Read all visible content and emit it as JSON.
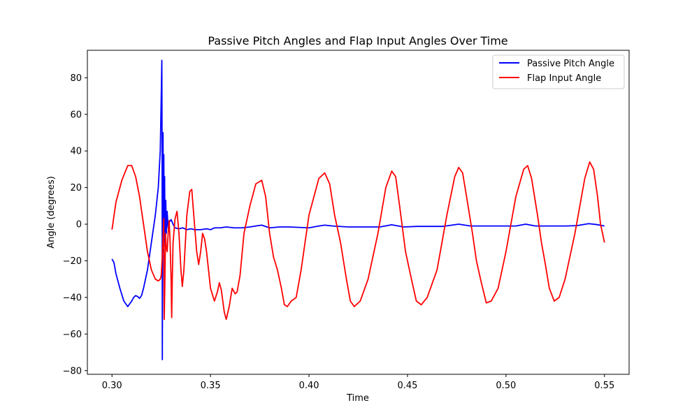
{
  "chart_data": {
    "type": "line",
    "title": "Passive Pitch Angles and Flap Input Angles Over Time",
    "xlabel": "Time",
    "ylabel": "Angle (degrees)",
    "xlim": [
      0.2875,
      0.5625
    ],
    "ylim": [
      -82,
      95
    ],
    "xticks": [
      0.3,
      0.35,
      0.4,
      0.45,
      0.5,
      0.55
    ],
    "xtick_labels": [
      "0.30",
      "0.35",
      "0.40",
      "0.45",
      "0.50",
      "0.55"
    ],
    "yticks": [
      -80,
      -60,
      -40,
      -20,
      0,
      20,
      40,
      60,
      80
    ],
    "ytick_labels": [
      "−80",
      "−60",
      "−40",
      "−20",
      "0",
      "20",
      "40",
      "60",
      "80"
    ],
    "grid": false,
    "legend_position": "top-right",
    "series": [
      {
        "name": "Passive Pitch Angle",
        "color": "#0000ff",
        "points": [
          [
            0.3,
            -19
          ],
          [
            0.301,
            -21
          ],
          [
            0.302,
            -27
          ],
          [
            0.304,
            -35
          ],
          [
            0.306,
            -42
          ],
          [
            0.308,
            -45
          ],
          [
            0.31,
            -42
          ],
          [
            0.311,
            -40
          ],
          [
            0.312,
            -39
          ],
          [
            0.313,
            -39.5
          ],
          [
            0.314,
            -40.5
          ],
          [
            0.315,
            -39
          ],
          [
            0.316,
            -35
          ],
          [
            0.318,
            -25
          ],
          [
            0.32,
            -10
          ],
          [
            0.322,
            5
          ],
          [
            0.3235,
            20
          ],
          [
            0.3245,
            40
          ],
          [
            0.325,
            70
          ],
          [
            0.3253,
            89.5
          ],
          [
            0.32545,
            30
          ],
          [
            0.32555,
            -74
          ],
          [
            0.3257,
            -20
          ],
          [
            0.3259,
            50
          ],
          [
            0.3261,
            -15
          ],
          [
            0.3263,
            38
          ],
          [
            0.3265,
            -10
          ],
          [
            0.3267,
            26
          ],
          [
            0.327,
            -12
          ],
          [
            0.3273,
            13
          ],
          [
            0.3276,
            -5
          ],
          [
            0.328,
            7
          ],
          [
            0.3285,
            -2
          ],
          [
            0.329,
            1
          ],
          [
            0.33,
            2.5
          ],
          [
            0.331,
            0
          ],
          [
            0.332,
            -2
          ],
          [
            0.334,
            -2.5
          ],
          [
            0.336,
            -2
          ],
          [
            0.338,
            -3
          ],
          [
            0.34,
            -2.5
          ],
          [
            0.342,
            -3
          ],
          [
            0.345,
            -3
          ],
          [
            0.348,
            -2.5
          ],
          [
            0.35,
            -3
          ],
          [
            0.352,
            -2
          ],
          [
            0.355,
            -2
          ],
          [
            0.358,
            -1.5
          ],
          [
            0.362,
            -2
          ],
          [
            0.366,
            -2
          ],
          [
            0.37,
            -1.5
          ],
          [
            0.373,
            -1
          ],
          [
            0.376,
            -0.5
          ],
          [
            0.38,
            -2
          ],
          [
            0.385,
            -1.5
          ],
          [
            0.39,
            -1.5
          ],
          [
            0.4,
            -2
          ],
          [
            0.405,
            -1
          ],
          [
            0.408,
            -0.5
          ],
          [
            0.412,
            -1
          ],
          [
            0.42,
            -1.5
          ],
          [
            0.43,
            -1.5
          ],
          [
            0.436,
            -1.5
          ],
          [
            0.442,
            -0.3
          ],
          [
            0.448,
            -1.5
          ],
          [
            0.455,
            -1.2
          ],
          [
            0.462,
            -1.2
          ],
          [
            0.468,
            -1.2
          ],
          [
            0.476,
            0
          ],
          [
            0.482,
            -1
          ],
          [
            0.49,
            -1
          ],
          [
            0.5,
            -1
          ],
          [
            0.505,
            -1
          ],
          [
            0.51,
            0
          ],
          [
            0.515,
            -1
          ],
          [
            0.522,
            -1
          ],
          [
            0.53,
            -1
          ],
          [
            0.536,
            -0.8
          ],
          [
            0.542,
            0.3
          ],
          [
            0.546,
            -0.2
          ],
          [
            0.55,
            -1
          ]
        ]
      },
      {
        "name": "Flap Input Angle",
        "color": "#ff0000",
        "points": [
          [
            0.3,
            -3
          ],
          [
            0.302,
            12
          ],
          [
            0.305,
            24
          ],
          [
            0.308,
            32
          ],
          [
            0.31,
            32
          ],
          [
            0.312,
            26
          ],
          [
            0.314,
            15
          ],
          [
            0.316,
            0
          ],
          [
            0.318,
            -15
          ],
          [
            0.32,
            -25
          ],
          [
            0.322,
            -30
          ],
          [
            0.3235,
            -31
          ],
          [
            0.3245,
            -30
          ],
          [
            0.325,
            -28
          ],
          [
            0.3255,
            -18
          ],
          [
            0.326,
            -5
          ],
          [
            0.3263,
            3
          ],
          [
            0.3265,
            -52
          ],
          [
            0.3268,
            -35
          ],
          [
            0.3272,
            -5
          ],
          [
            0.3275,
            -12
          ],
          [
            0.328,
            -15
          ],
          [
            0.3285,
            -5
          ],
          [
            0.329,
            2
          ],
          [
            0.3295,
            -10
          ],
          [
            0.33,
            -30
          ],
          [
            0.3303,
            -51
          ],
          [
            0.3306,
            -30
          ],
          [
            0.331,
            -10
          ],
          [
            0.332,
            3
          ],
          [
            0.333,
            7
          ],
          [
            0.334,
            -5
          ],
          [
            0.335,
            -25
          ],
          [
            0.3357,
            -34
          ],
          [
            0.3365,
            -25
          ],
          [
            0.338,
            5
          ],
          [
            0.3395,
            18
          ],
          [
            0.3405,
            19
          ],
          [
            0.3415,
            5
          ],
          [
            0.343,
            -15
          ],
          [
            0.344,
            -22
          ],
          [
            0.345,
            -15
          ],
          [
            0.346,
            -5
          ],
          [
            0.347,
            -8
          ],
          [
            0.348,
            -15
          ],
          [
            0.35,
            -35
          ],
          [
            0.352,
            -42
          ],
          [
            0.3535,
            -37
          ],
          [
            0.3545,
            -32
          ],
          [
            0.3555,
            -36
          ],
          [
            0.357,
            -48
          ],
          [
            0.358,
            -52
          ],
          [
            0.3595,
            -45
          ],
          [
            0.361,
            -35
          ],
          [
            0.3625,
            -38
          ],
          [
            0.3635,
            -37
          ],
          [
            0.365,
            -28
          ],
          [
            0.367,
            -5
          ],
          [
            0.37,
            10
          ],
          [
            0.373,
            22
          ],
          [
            0.376,
            24
          ],
          [
            0.378,
            15
          ],
          [
            0.38,
            -5
          ],
          [
            0.382,
            -18
          ],
          [
            0.384,
            -25
          ],
          [
            0.386,
            -35
          ],
          [
            0.3875,
            -44
          ],
          [
            0.389,
            -45
          ],
          [
            0.391,
            -42
          ],
          [
            0.3935,
            -40
          ],
          [
            0.396,
            -25
          ],
          [
            0.4,
            5
          ],
          [
            0.405,
            25
          ],
          [
            0.408,
            28
          ],
          [
            0.4105,
            22
          ],
          [
            0.413,
            5
          ],
          [
            0.416,
            -10
          ],
          [
            0.4175,
            -20
          ],
          [
            0.419,
            -30
          ],
          [
            0.421,
            -42
          ],
          [
            0.423,
            -45
          ],
          [
            0.426,
            -42
          ],
          [
            0.43,
            -30
          ],
          [
            0.435,
            -5
          ],
          [
            0.439,
            20
          ],
          [
            0.442,
            29
          ],
          [
            0.444,
            26
          ],
          [
            0.446,
            10
          ],
          [
            0.449,
            -15
          ],
          [
            0.452,
            -30
          ],
          [
            0.4545,
            -42
          ],
          [
            0.457,
            -44
          ],
          [
            0.46,
            -40
          ],
          [
            0.465,
            -25
          ],
          [
            0.47,
            5
          ],
          [
            0.474,
            26
          ],
          [
            0.476,
            31
          ],
          [
            0.478,
            28
          ],
          [
            0.48,
            15
          ],
          [
            0.483,
            -5
          ],
          [
            0.485,
            -20
          ],
          [
            0.4875,
            -32
          ],
          [
            0.49,
            -43
          ],
          [
            0.4925,
            -42
          ],
          [
            0.496,
            -35
          ],
          [
            0.5,
            -15
          ],
          [
            0.505,
            15
          ],
          [
            0.509,
            30
          ],
          [
            0.511,
            32
          ],
          [
            0.513,
            25
          ],
          [
            0.516,
            5
          ],
          [
            0.518,
            -10
          ],
          [
            0.52,
            -22
          ],
          [
            0.522,
            -35
          ],
          [
            0.5245,
            -42
          ],
          [
            0.527,
            -40
          ],
          [
            0.53,
            -30
          ],
          [
            0.535,
            -5
          ],
          [
            0.54,
            25
          ],
          [
            0.5425,
            34
          ],
          [
            0.5445,
            30
          ],
          [
            0.5465,
            15
          ],
          [
            0.548,
            0
          ],
          [
            0.55,
            -10
          ]
        ]
      }
    ]
  }
}
